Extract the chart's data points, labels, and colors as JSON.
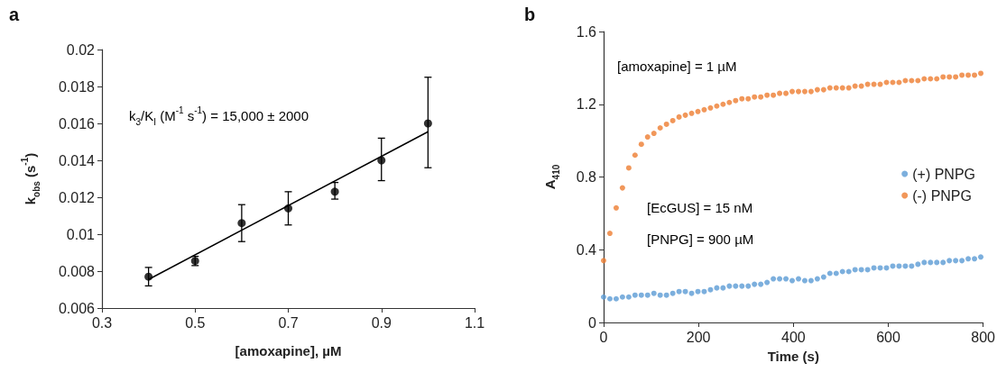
{
  "chart_data": [
    {
      "type": "scatter",
      "title": "a",
      "xlabel": "[amoxapine], µM",
      "ylabel": "k$_{obs}$ (s$^{-1}$)",
      "annotations": [
        "k$_{3}$/K$_{I}$ (M$^{-1}$ s$^{-1}$) = 15,000 ± 2000"
      ],
      "xlim": [
        0.3,
        1.1
      ],
      "xticks": [
        0.3,
        0.5,
        0.7,
        0.9,
        1.1
      ],
      "ylim": [
        0.006,
        0.02
      ],
      "yticks": [
        0.006,
        0.008,
        0.01,
        0.012,
        0.014,
        0.016,
        0.018,
        0.02
      ],
      "grid": false,
      "legend": false,
      "series": [
        {
          "color": "#000000",
          "marker": "circle",
          "x": [
            0.4,
            0.5,
            0.6,
            0.7,
            0.8,
            0.9,
            1.0
          ],
          "values": [
            0.0077,
            0.00855,
            0.0106,
            0.0114,
            0.0123,
            0.014,
            0.016
          ],
          "errors": [
            [
              0.0072,
              0.0082
            ],
            [
              0.0083,
              0.0088
            ],
            [
              0.0096,
              0.0116
            ],
            [
              0.0105,
              0.0123
            ],
            [
              0.0119,
              0.0128
            ],
            [
              0.0129,
              0.0152
            ],
            [
              0.0136,
              0.0185
            ]
          ]
        },
        {
          "type": "line",
          "color": "#000000",
          "marker": "none",
          "line_style": "solid",
          "x": [
            0.4,
            1.0
          ],
          "values": [
            0.00755,
            0.01555
          ]
        }
      ]
    },
    {
      "type": "scatter",
      "title": "b",
      "xlabel": "Time (s)",
      "ylabel": "A$_{410}$",
      "annotations": [
        "[amoxapine] = 1 µM",
        "[EcGUS] = 15 nM",
        "[PNPG] = 900 µM"
      ],
      "xlim": [
        0,
        800
      ],
      "xticks": [
        0,
        200,
        400,
        600,
        800
      ],
      "ylim": [
        0,
        1.6
      ],
      "yticks": [
        0,
        0.4,
        0.8,
        1.2,
        1.6
      ],
      "grid": false,
      "legend": "right",
      "marker": "circle",
      "x": [
        0,
        13.25,
        26.5,
        39.75,
        53,
        66.25,
        79.5,
        92.75,
        106,
        119.25,
        132.5,
        145.75,
        159,
        172.25,
        185.5,
        198.75,
        212,
        225.25,
        238.5,
        251.75,
        265,
        278.25,
        291.5,
        304.75,
        318,
        331.25,
        344.5,
        357.75,
        371,
        384.25,
        397.5,
        410.75,
        424,
        437.25,
        450.5,
        463.75,
        477,
        490.25,
        503.5,
        516.75,
        530,
        543.25,
        556.5,
        569.75,
        583,
        596.25,
        609.5,
        622.75,
        636,
        649.25,
        662.5,
        675.75,
        689,
        702.25,
        715.5,
        728.75,
        742,
        755.25,
        768.5,
        781.75,
        795
      ],
      "series": [
        {
          "name": "(+) PNPG",
          "color": "#5b9bd5",
          "values": [
            0.14,
            0.13,
            0.13,
            0.14,
            0.14,
            0.15,
            0.15,
            0.15,
            0.16,
            0.15,
            0.15,
            0.16,
            0.17,
            0.17,
            0.16,
            0.17,
            0.17,
            0.18,
            0.19,
            0.19,
            0.2,
            0.2,
            0.2,
            0.2,
            0.21,
            0.21,
            0.22,
            0.24,
            0.24,
            0.24,
            0.23,
            0.24,
            0.23,
            0.23,
            0.24,
            0.25,
            0.27,
            0.27,
            0.28,
            0.28,
            0.29,
            0.29,
            0.29,
            0.3,
            0.3,
            0.3,
            0.31,
            0.31,
            0.31,
            0.31,
            0.32,
            0.33,
            0.33,
            0.33,
            0.33,
            0.34,
            0.34,
            0.34,
            0.35,
            0.35,
            0.36
          ]
        },
        {
          "name": "(-) PNPG",
          "color": "#ed7d31",
          "values": [
            0.34,
            0.49,
            0.63,
            0.74,
            0.85,
            0.92,
            0.98,
            1.02,
            1.04,
            1.07,
            1.09,
            1.11,
            1.13,
            1.14,
            1.15,
            1.16,
            1.17,
            1.18,
            1.19,
            1.2,
            1.21,
            1.22,
            1.23,
            1.23,
            1.24,
            1.24,
            1.25,
            1.25,
            1.26,
            1.26,
            1.27,
            1.27,
            1.27,
            1.27,
            1.28,
            1.28,
            1.29,
            1.29,
            1.29,
            1.29,
            1.3,
            1.3,
            1.31,
            1.31,
            1.31,
            1.32,
            1.32,
            1.32,
            1.33,
            1.33,
            1.33,
            1.34,
            1.34,
            1.34,
            1.35,
            1.35,
            1.35,
            1.36,
            1.36,
            1.36,
            1.37
          ]
        }
      ]
    }
  ]
}
